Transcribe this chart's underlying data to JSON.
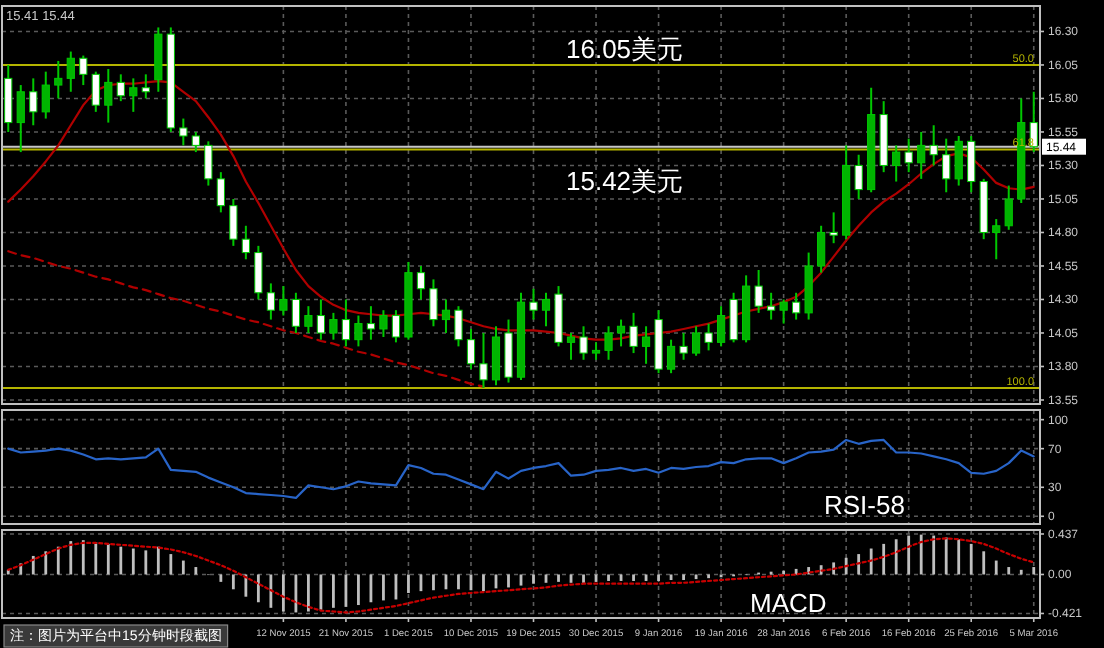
{
  "chart_data": [
    {
      "type": "candlestick",
      "categories": [
        null,
        null,
        null,
        null,
        null,
        null,
        null,
        null,
        null,
        null,
        null,
        null,
        null,
        null,
        null,
        null,
        null,
        null,
        null,
        null,
        null,
        null,
        null,
        null,
        null,
        null,
        null,
        null,
        null,
        null,
        null,
        null,
        null,
        null,
        null,
        null,
        null,
        null,
        null,
        null,
        null,
        null,
        null,
        null,
        null,
        null,
        null,
        null,
        null,
        null,
        null,
        null,
        null,
        null,
        null,
        null,
        null,
        null,
        null,
        null,
        null,
        null,
        null,
        null,
        null,
        null,
        null,
        null,
        null,
        null,
        null,
        null,
        null,
        null,
        null,
        null,
        null,
        null,
        null,
        null,
        null,
        null,
        null
      ],
      "ohlc": [
        [
          15.95,
          16.05,
          15.55,
          15.62
        ],
        [
          15.62,
          15.9,
          15.4,
          15.85
        ],
        [
          15.85,
          15.95,
          15.6,
          15.7
        ],
        [
          15.7,
          16.0,
          15.65,
          15.9
        ],
        [
          15.9,
          16.08,
          15.8,
          15.95
        ],
        [
          15.95,
          16.15,
          15.85,
          16.1
        ],
        [
          16.1,
          16.12,
          15.9,
          15.98
        ],
        [
          15.98,
          16.0,
          15.7,
          15.75
        ],
        [
          15.75,
          16.02,
          15.62,
          15.92
        ],
        [
          15.92,
          15.98,
          15.78,
          15.82
        ],
        [
          15.82,
          15.95,
          15.7,
          15.88
        ],
        [
          15.88,
          15.98,
          15.8,
          15.85
        ],
        [
          15.94,
          16.33,
          15.85,
          16.28
        ],
        [
          16.28,
          16.33,
          15.55,
          15.58
        ],
        [
          15.58,
          15.65,
          15.45,
          15.52
        ],
        [
          15.52,
          15.55,
          15.4,
          15.45
        ],
        [
          15.45,
          15.48,
          15.15,
          15.2
        ],
        [
          15.2,
          15.25,
          14.95,
          15.0
        ],
        [
          15.0,
          15.05,
          14.7,
          14.75
        ],
        [
          14.75,
          14.85,
          14.6,
          14.65
        ],
        [
          14.65,
          14.7,
          14.3,
          14.35
        ],
        [
          14.35,
          14.42,
          14.15,
          14.22
        ],
        [
          14.22,
          14.4,
          14.18,
          14.3
        ],
        [
          14.3,
          14.35,
          14.05,
          14.1
        ],
        [
          14.1,
          14.25,
          14.05,
          14.18
        ],
        [
          14.18,
          14.3,
          14.0,
          14.05
        ],
        [
          14.05,
          14.2,
          14.0,
          14.15
        ],
        [
          14.15,
          14.3,
          13.95,
          14.0
        ],
        [
          14.0,
          14.18,
          13.95,
          14.12
        ],
        [
          14.12,
          14.25,
          14.0,
          14.08
        ],
        [
          14.08,
          14.22,
          14.02,
          14.18
        ],
        [
          14.18,
          14.22,
          13.98,
          14.02
        ],
        [
          14.02,
          14.58,
          14.0,
          14.5
        ],
        [
          14.5,
          14.55,
          14.3,
          14.38
        ],
        [
          14.38,
          14.45,
          14.1,
          14.15
        ],
        [
          14.15,
          14.3,
          14.05,
          14.22
        ],
        [
          14.22,
          14.25,
          13.95,
          14.0
        ],
        [
          14.0,
          14.08,
          13.78,
          13.82
        ],
        [
          13.82,
          14.05,
          13.64,
          13.7
        ],
        [
          13.7,
          14.1,
          13.66,
          14.02
        ],
        [
          14.05,
          14.15,
          13.68,
          13.72
        ],
        [
          13.72,
          14.35,
          13.7,
          14.28
        ],
        [
          14.28,
          14.38,
          14.15,
          14.22
        ],
        [
          14.22,
          14.35,
          14.1,
          14.3
        ],
        [
          14.34,
          14.4,
          13.95,
          13.98
        ],
        [
          13.98,
          14.05,
          13.85,
          14.02
        ],
        [
          14.02,
          14.1,
          13.85,
          13.9
        ],
        [
          13.9,
          13.98,
          13.85,
          13.92
        ],
        [
          13.92,
          14.1,
          13.85,
          14.05
        ],
        [
          14.05,
          14.15,
          13.95,
          14.1
        ],
        [
          14.1,
          14.2,
          13.9,
          13.95
        ],
        [
          13.95,
          14.1,
          13.82,
          14.02
        ],
        [
          14.15,
          14.22,
          13.75,
          13.78
        ],
        [
          13.78,
          14.0,
          13.75,
          13.95
        ],
        [
          13.95,
          14.05,
          13.85,
          13.9
        ],
        [
          13.9,
          14.1,
          13.88,
          14.05
        ],
        [
          14.05,
          14.12,
          13.92,
          13.98
        ],
        [
          13.98,
          14.25,
          13.95,
          14.18
        ],
        [
          14.3,
          14.35,
          13.98,
          14.0
        ],
        [
          14.0,
          14.48,
          13.98,
          14.4
        ],
        [
          14.4,
          14.52,
          14.2,
          14.25
        ],
        [
          14.25,
          14.35,
          14.15,
          14.22
        ],
        [
          14.22,
          14.3,
          14.12,
          14.28
        ],
        [
          14.28,
          14.35,
          14.15,
          14.2
        ],
        [
          14.2,
          14.65,
          14.15,
          14.55
        ],
        [
          14.55,
          14.85,
          14.5,
          14.8
        ],
        [
          14.8,
          14.95,
          14.72,
          14.78
        ],
        [
          14.78,
          15.45,
          14.75,
          15.3
        ],
        [
          15.3,
          15.38,
          15.05,
          15.12
        ],
        [
          15.12,
          15.88,
          15.1,
          15.68
        ],
        [
          15.68,
          15.78,
          15.25,
          15.3
        ],
        [
          15.3,
          15.45,
          15.18,
          15.4
        ],
        [
          15.4,
          15.5,
          15.25,
          15.32
        ],
        [
          15.32,
          15.55,
          15.2,
          15.45
        ],
        [
          15.45,
          15.6,
          15.3,
          15.38
        ],
        [
          15.38,
          15.5,
          15.1,
          15.2
        ],
        [
          15.2,
          15.52,
          15.15,
          15.48
        ],
        [
          15.48,
          15.52,
          15.1,
          15.18
        ],
        [
          15.18,
          15.2,
          14.75,
          14.8
        ],
        [
          14.8,
          14.9,
          14.6,
          14.85
        ],
        [
          14.85,
          15.15,
          14.82,
          15.05
        ],
        [
          15.05,
          15.8,
          15.02,
          15.62
        ],
        [
          15.62,
          15.85,
          15.4,
          15.44
        ]
      ],
      "series": [
        {
          "type": "line",
          "color": "#b00000",
          "values": [
            15.03,
            15.12,
            15.22,
            15.33,
            15.45,
            15.6,
            15.75,
            15.86,
            15.9,
            15.91,
            15.91,
            15.92,
            15.93,
            15.92,
            15.85,
            15.78,
            15.66,
            15.53,
            15.37,
            15.18,
            15.02,
            14.85,
            14.68,
            14.52,
            14.4,
            14.32,
            14.26,
            14.22,
            14.2,
            14.19,
            14.18,
            14.18,
            14.19,
            14.2,
            14.19,
            14.18,
            14.16,
            14.13,
            14.1,
            14.08,
            14.07,
            14.07,
            14.07,
            14.06,
            14.05,
            14.03,
            14.01,
            14.0,
            14.0,
            14.01,
            14.03,
            14.04,
            14.05,
            14.06,
            14.08,
            14.1,
            14.12,
            14.15,
            14.18,
            14.21,
            14.23,
            14.25,
            14.28,
            14.32,
            14.4,
            14.5,
            14.62,
            14.74,
            14.85,
            14.95,
            15.03,
            15.09,
            15.16,
            15.24,
            15.31,
            15.37,
            15.39,
            15.36,
            15.27,
            15.17,
            15.13,
            15.12,
            15.14
          ]
        },
        {
          "type": "line",
          "color": "#b00000",
          "line_style": "dashed",
          "values": [
            14.66,
            14.63,
            14.61,
            14.58,
            14.55,
            14.53,
            14.5,
            14.47,
            14.45,
            14.42,
            14.39,
            14.37,
            14.34,
            14.31,
            14.29,
            14.26,
            14.23,
            14.21,
            14.18,
            14.15,
            14.13,
            14.1,
            14.07,
            14.05,
            14.02,
            13.99,
            13.97,
            13.94,
            13.91,
            13.89,
            13.86,
            13.83,
            13.81,
            13.78,
            13.75,
            13.73,
            13.7,
            13.67,
            13.65,
            null,
            null,
            null,
            null,
            null,
            null,
            null,
            null,
            null,
            null,
            null,
            null,
            null,
            null,
            null,
            null,
            null,
            null,
            null,
            null,
            null,
            null,
            null,
            null,
            null,
            null,
            null,
            null,
            null,
            null,
            null,
            null,
            null,
            null,
            null,
            null,
            null,
            null,
            null,
            null,
            null,
            null,
            null,
            null
          ]
        }
      ],
      "ylim": [
        13.52,
        16.49
      ],
      "yticks": [
        13.55,
        {
          "value": 13.8,
          "label": "13.80"
        },
        14.05,
        {
          "value": 14.3,
          "label": "14.30"
        },
        14.55,
        {
          "value": 14.8,
          "label": "14.80"
        },
        15.05,
        {
          "value": 15.3,
          "label": "15.30"
        },
        15.55,
        {
          "value": 15.8,
          "label": "15.80"
        },
        16.05,
        {
          "value": 16.3,
          "label": "16.30"
        }
      ],
      "ref_lines": [
        {
          "axis": "y",
          "value": 16.05,
          "color": "#b4b400"
        },
        {
          "axis": "y",
          "value": 15.42,
          "color": "#b4b400"
        },
        {
          "axis": "y",
          "value": 13.64,
          "color": "#b4b400"
        },
        {
          "axis": "y",
          "value": 15.44,
          "label": "15.44",
          "color": "#c8c8c8"
        }
      ],
      "annotations": [
        "16.05美元",
        "15.42美元",
        "15.41 15.44",
        {
          "text": "50.0",
          "y": 16.05
        },
        {
          "text": "61.8",
          "y": 15.42
        },
        {
          "text": "100.0",
          "y": 13.64
        }
      ],
      "grid": true,
      "tick_labels": "y"
    },
    {
      "type": "line",
      "categories": [
        null,
        null,
        null,
        null,
        null,
        null,
        null,
        null,
        null,
        null,
        null,
        null,
        null,
        null,
        null,
        null,
        null,
        null,
        null,
        null,
        null,
        null,
        null,
        null,
        null,
        null,
        null,
        null,
        null,
        null,
        null,
        null,
        null,
        null,
        null,
        null,
        null,
        null,
        null,
        null,
        null,
        null,
        null,
        null,
        null,
        null,
        null,
        null,
        null,
        null,
        null,
        null,
        null,
        null,
        null,
        null,
        null,
        null,
        null,
        null,
        null,
        null,
        null,
        null,
        null,
        null,
        null,
        null,
        null,
        null,
        null,
        null,
        null,
        null,
        null,
        null,
        null,
        null,
        null,
        null,
        null,
        null,
        null
      ],
      "series": [
        {
          "color": "#2864c8",
          "values": [
            70,
            66,
            67,
            68,
            70,
            68,
            64,
            59,
            60,
            59,
            60,
            61,
            70,
            48,
            47,
            46,
            40,
            35,
            30,
            24,
            23,
            22,
            21,
            19,
            32,
            30,
            28,
            31,
            36,
            34,
            33,
            32,
            53,
            50,
            44,
            43,
            38,
            33,
            28,
            46,
            39,
            47,
            50,
            52,
            55,
            42,
            43,
            47,
            48,
            50,
            47,
            49,
            45,
            50,
            49,
            51,
            52,
            56,
            55,
            59,
            60,
            60,
            55,
            60,
            66,
            67,
            69,
            79,
            75,
            78,
            79,
            66,
            66,
            65,
            62,
            59,
            55,
            45,
            44,
            47,
            55,
            68,
            62
          ]
        }
      ],
      "ylim": [
        -8,
        110
      ],
      "yticks": [
        0,
        30,
        70,
        100
      ],
      "annotations": [
        "RSI-58"
      ],
      "grid": true,
      "tick_labels": "y"
    },
    {
      "type": "bar",
      "categories": [
        null,
        null,
        null,
        null,
        null,
        null,
        null,
        null,
        null,
        null,
        null,
        null,
        null,
        null,
        null,
        null,
        null,
        null,
        null,
        null,
        null,
        null,
        "12 Nov 2015",
        null,
        null,
        null,
        null,
        "21 Nov 2015",
        null,
        null,
        null,
        null,
        "1 Dec 2015",
        null,
        null,
        null,
        null,
        "10 Dec 2015",
        null,
        null,
        null,
        null,
        "19 Dec 2015",
        null,
        null,
        null,
        null,
        "30 Dec 2015",
        null,
        null,
        null,
        null,
        "9 Jan 2016",
        null,
        null,
        null,
        null,
        "19 Jan 2016",
        null,
        null,
        null,
        null,
        "28 Jan 2016",
        null,
        null,
        null,
        null,
        "6 Feb 2016",
        null,
        null,
        null,
        null,
        "16 Feb 2016",
        null,
        null,
        null,
        null,
        "25 Feb 2016",
        null,
        null,
        null,
        null,
        "5 Mar 2016"
      ],
      "series": [
        {
          "color": "#c0c0c0",
          "values": [
            0.05,
            0.12,
            0.2,
            0.25,
            0.3,
            0.36,
            0.37,
            0.35,
            0.33,
            0.3,
            0.28,
            0.26,
            0.3,
            0.22,
            0.15,
            0.08,
            0.0,
            -0.08,
            -0.16,
            -0.24,
            -0.3,
            -0.36,
            -0.4,
            -0.41,
            -0.4,
            -0.38,
            -0.36,
            -0.35,
            -0.33,
            -0.3,
            -0.28,
            -0.27,
            -0.2,
            -0.18,
            -0.17,
            -0.16,
            -0.16,
            -0.17,
            -0.18,
            -0.15,
            -0.14,
            -0.12,
            -0.1,
            -0.09,
            -0.08,
            -0.09,
            -0.09,
            -0.08,
            -0.07,
            -0.07,
            -0.07,
            -0.07,
            -0.07,
            -0.06,
            -0.06,
            -0.05,
            -0.04,
            -0.03,
            -0.02,
            0.0,
            0.02,
            0.03,
            0.04,
            0.06,
            0.08,
            0.1,
            0.13,
            0.18,
            0.22,
            0.28,
            0.33,
            0.38,
            0.42,
            0.43,
            0.42,
            0.4,
            0.38,
            0.33,
            0.25,
            0.15,
            0.08,
            0.05,
            0.08
          ]
        },
        {
          "type": "line",
          "color": "#c80000",
          "line_style": "dotted",
          "values": [
            0.05,
            0.1,
            0.16,
            0.22,
            0.28,
            0.32,
            0.34,
            0.34,
            0.33,
            0.32,
            0.31,
            0.3,
            0.29,
            0.27,
            0.24,
            0.2,
            0.15,
            0.1,
            0.04,
            -0.03,
            -0.1,
            -0.17,
            -0.24,
            -0.3,
            -0.35,
            -0.39,
            -0.4,
            -0.41,
            -0.4,
            -0.38,
            -0.36,
            -0.34,
            -0.31,
            -0.28,
            -0.25,
            -0.23,
            -0.21,
            -0.2,
            -0.19,
            -0.18,
            -0.17,
            -0.16,
            -0.15,
            -0.14,
            -0.12,
            -0.11,
            -0.1,
            -0.1,
            -0.1,
            -0.1,
            -0.1,
            -0.1,
            -0.1,
            -0.09,
            -0.09,
            -0.08,
            -0.07,
            -0.06,
            -0.05,
            -0.04,
            -0.03,
            -0.02,
            -0.01,
            0.0,
            0.02,
            0.04,
            0.06,
            0.09,
            0.12,
            0.15,
            0.19,
            0.24,
            0.3,
            0.35,
            0.38,
            0.39,
            0.38,
            0.36,
            0.33,
            0.28,
            0.22,
            0.17,
            0.13
          ]
        }
      ],
      "ylim": [
        -0.47,
        0.48
      ],
      "yticks": [
        -0.421,
        {
          "value": 0,
          "label": "0.00"
        },
        0.437
      ],
      "annotations": [
        "MACD",
        "注：图片为平台中15分钟时段截图"
      ],
      "grid": true
    }
  ]
}
